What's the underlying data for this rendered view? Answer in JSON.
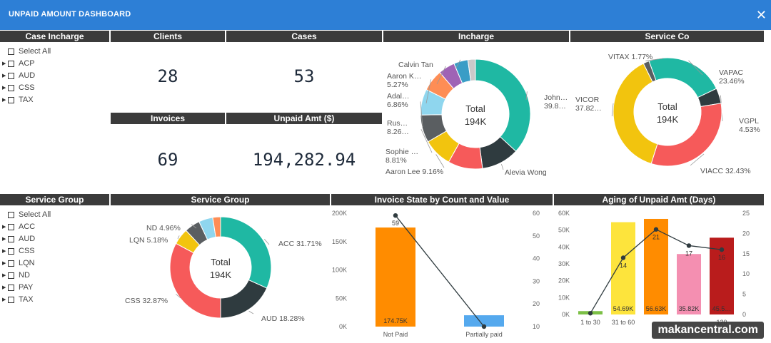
{
  "window": {
    "title": "UNPAID AMOUNT DASHBOARD",
    "close_glyph": "✕"
  },
  "headers": {
    "case_incharge": "Case Incharge",
    "clients": "Clients",
    "cases": "Cases",
    "incharge": "Incharge",
    "service_co": "Service Co",
    "invoices": "Invoices",
    "unpaid_amt": "Unpaid Amt ($)",
    "service_group_slicer": "Service Group",
    "service_group_chart": "Service Group",
    "invoice_state": "Invoice State by Count and Value",
    "aging": "Aging of Unpaid Amt (Days)"
  },
  "case_incharge_slicer": {
    "items": [
      {
        "label": "Select All",
        "expandable": false
      },
      {
        "label": "ACP",
        "expandable": true
      },
      {
        "label": "AUD",
        "expandable": true
      },
      {
        "label": "CSS",
        "expandable": true
      },
      {
        "label": "TAX",
        "expandable": true
      }
    ]
  },
  "service_group_slicer": {
    "items": [
      {
        "label": "Select All",
        "expandable": false
      },
      {
        "label": "ACC",
        "expandable": true
      },
      {
        "label": "AUD",
        "expandable": true
      },
      {
        "label": "CSS",
        "expandable": true
      },
      {
        "label": "LQN",
        "expandable": true
      },
      {
        "label": "ND",
        "expandable": true
      },
      {
        "label": "PAY",
        "expandable": true
      },
      {
        "label": "TAX",
        "expandable": true
      }
    ]
  },
  "kpis": {
    "clients": "28",
    "cases": "53",
    "invoices": "69",
    "unpaid_amt": "194,282.94"
  },
  "chart_data": [
    {
      "id": "incharge",
      "type": "pie",
      "center_label": "Total",
      "center_value": "194K",
      "slices": [
        {
          "label": "John…",
          "value": 39.8,
          "display": "39.8…",
          "color": "#1fb8a3"
        },
        {
          "label": "Alevia Wong",
          "value": 12.0,
          "display": "",
          "color": "#2f3b3f"
        },
        {
          "label": "",
          "value": 11.0,
          "display": "",
          "color": "#f65a5a"
        },
        {
          "label": "Aaron Lee",
          "value": 9.16,
          "display": "9.16%",
          "color": "#f2c40e"
        },
        {
          "label": "Sophie …",
          "value": 8.81,
          "display": "8.81%",
          "color": "#5a5e61"
        },
        {
          "label": "Rus…",
          "value": 8.26,
          "display": "8.26…",
          "color": "#8fd6ee"
        },
        {
          "label": "Adal…",
          "value": 6.86,
          "display": "6.86%",
          "color": "#fe8d55"
        },
        {
          "label": "Aaron K…",
          "value": 5.27,
          "display": "5.27%",
          "color": "#9f63b5"
        },
        {
          "label": "Calvin Tan",
          "value": 4.5,
          "display": "",
          "color": "#3a9dc6"
        },
        {
          "label": "",
          "value": 2.4,
          "display": "",
          "color": "#c9c9c9"
        }
      ]
    },
    {
      "id": "service_co",
      "type": "pie",
      "center_label": "Total",
      "center_value": "194K",
      "slices": [
        {
          "label": "VAPAC",
          "value": 23.46,
          "display": "23.46%",
          "color": "#1fb8a3"
        },
        {
          "label": "VGPL",
          "value": 4.53,
          "display": "4.53%",
          "color": "#2f3b3f"
        },
        {
          "label": "VIACC",
          "value": 32.43,
          "display": "32.43%",
          "color": "#f65a5a"
        },
        {
          "label": "VICOR",
          "value": 37.82,
          "display": "37.82…",
          "color": "#f2c40e"
        },
        {
          "label": "VITAX",
          "value": 1.77,
          "display": "1.77%",
          "color": "#5a5e61"
        }
      ]
    },
    {
      "id": "service_group",
      "type": "pie",
      "center_label": "Total",
      "center_value": "194K",
      "slices": [
        {
          "label": "ACC",
          "value": 31.71,
          "display": "31.71%",
          "color": "#1fb8a3"
        },
        {
          "label": "AUD",
          "value": 18.28,
          "display": "18.28%",
          "color": "#2f3b3f"
        },
        {
          "label": "CSS",
          "value": 32.87,
          "display": "32.87%",
          "color": "#f65a5a"
        },
        {
          "label": "LQN",
          "value": 5.18,
          "display": "5.18%",
          "color": "#f2c40e"
        },
        {
          "label": "ND",
          "value": 4.96,
          "display": "4.96%",
          "color": "#5a5e61"
        },
        {
          "label": "",
          "value": 4.5,
          "display": "",
          "color": "#8fd6ee"
        },
        {
          "label": "",
          "value": 2.5,
          "display": "",
          "color": "#fe8d55"
        }
      ]
    },
    {
      "id": "invoice_state",
      "type": "bar",
      "categories": [
        "Not Paid",
        "Partially paid"
      ],
      "bar_values": [
        174.75,
        20
      ],
      "bar_labels": [
        "174.75K",
        ""
      ],
      "bar_colors": [
        "#ff8c00",
        "#55a9ee"
      ],
      "line_values": [
        59,
        10
      ],
      "line_labels": [
        "59",
        ""
      ],
      "y_left_ticks": [
        "0K",
        "50K",
        "100K",
        "150K",
        "200K"
      ],
      "y_left_lim": [
        0,
        200
      ],
      "y_right_ticks": [
        "10",
        "20",
        "30",
        "40",
        "50",
        "60"
      ],
      "y_right_lim": [
        10,
        60
      ]
    },
    {
      "id": "aging",
      "type": "bar",
      "categories": [
        "1 to 30",
        "31 to 60",
        "",
        "",
        "120"
      ],
      "bar_values": [
        2,
        54.69,
        56.63,
        35.82,
        45.5
      ],
      "bar_labels": [
        "",
        "54.69K",
        "56.63K",
        "35.82K",
        "45.5…"
      ],
      "bar_colors": [
        "#7cc046",
        "#fde43c",
        "#ff8c00",
        "#f48fb1",
        "#b91c1c"
      ],
      "line_values": [
        0.3,
        14,
        21,
        17,
        16
      ],
      "line_labels": [
        "",
        "14",
        "21",
        "17",
        "16"
      ],
      "y_left_ticks": [
        "0K",
        "10K",
        "20K",
        "30K",
        "40K",
        "50K",
        "60K"
      ],
      "y_left_lim": [
        0,
        60
      ],
      "y_right_ticks": [
        "0",
        "5",
        "10",
        "15",
        "20",
        "25"
      ],
      "y_right_lim": [
        0,
        25
      ]
    }
  ],
  "watermark": "makancentral.com"
}
